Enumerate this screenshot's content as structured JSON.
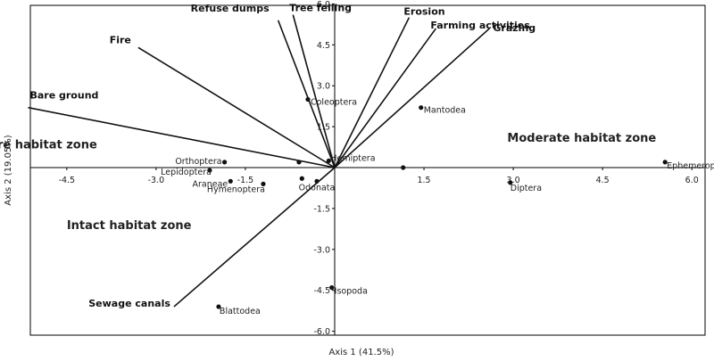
{
  "chart_data": {
    "type": "scatter",
    "subtype": "pca-biplot",
    "title": "",
    "xlabel": "Axis 1 (41.5%)",
    "ylabel": "Axis 2 (19.05%)",
    "xlim": [
      -5.3,
      6.0
    ],
    "ylim": [
      -6.0,
      6.0
    ],
    "x_ticks": [
      {
        "value": -4.5,
        "label": "-4.5"
      },
      {
        "value": -3.0,
        "label": "-3.0"
      },
      {
        "value": -1.5,
        "label": "-1.5"
      },
      {
        "value": 1.5,
        "label": "1.5"
      },
      {
        "value": 3.0,
        "label": "3.0"
      },
      {
        "value": 4.5,
        "label": "4.5"
      },
      {
        "value": 6.0,
        "label": "6.0"
      }
    ],
    "y_ticks": [
      {
        "value": 6.0,
        "label": "6.0"
      },
      {
        "value": 4.5,
        "label": "4.5"
      },
      {
        "value": 3.0,
        "label": "3.0"
      },
      {
        "value": 1.5,
        "label": "1.5"
      },
      {
        "value": -1.5,
        "label": "-1.5"
      },
      {
        "value": -3.0,
        "label": "-3.0"
      },
      {
        "value": -4.5,
        "label": "-4.5"
      },
      {
        "value": -6.0,
        "label": "-6.0"
      }
    ],
    "grid": false,
    "vector_color": "#111111",
    "point_color": "#111111",
    "vectors": [
      {
        "name": "Bare ground",
        "x": -5.15,
        "y": 2.2
      },
      {
        "name": "Fire",
        "x": -3.3,
        "y": 4.4
      },
      {
        "name": "Refuse dumps",
        "x": -0.95,
        "y": 5.4
      },
      {
        "name": "Tree felling",
        "x": -0.7,
        "y": 5.6
      },
      {
        "name": "Erosion",
        "x": 1.25,
        "y": 5.5
      },
      {
        "name": "Farming activities",
        "x": 1.7,
        "y": 5.1
      },
      {
        "name": "Grazing",
        "x": 2.6,
        "y": 5.1
      },
      {
        "name": "Sewage canals",
        "x": -2.7,
        "y": -5.1
      }
    ],
    "points": [
      {
        "name": "Coleoptera",
        "x": -0.45,
        "y": 2.5
      },
      {
        "name": "Mantodea",
        "x": 1.45,
        "y": 2.2
      },
      {
        "name": "Orthoptera",
        "x": -1.85,
        "y": 0.2
      },
      {
        "name": "Lepidoptera",
        "x": -2.1,
        "y": -0.1
      },
      {
        "name": "Araneae",
        "x": -1.75,
        "y": -0.5
      },
      {
        "name": "Hymenoptera",
        "x": -1.2,
        "y": -0.6
      },
      {
        "name": "Odonata",
        "x": -0.3,
        "y": -0.5
      },
      {
        "name": "Hemiptera",
        "x": -0.1,
        "y": 0.25
      },
      {
        "name": "Diptera",
        "x": 2.95,
        "y": -0.55
      },
      {
        "name": "Ephemeroptera",
        "x": 5.55,
        "y": 0.2
      },
      {
        "name": "Isopoda",
        "x": -0.05,
        "y": -4.4
      },
      {
        "name": "Blattodea",
        "x": -1.95,
        "y": -5.1
      }
    ],
    "unlabeled_points": [
      {
        "x": -0.6,
        "y": 0.2
      },
      {
        "x": -0.55,
        "y": -0.4
      },
      {
        "x": 1.15,
        "y": 0.0
      }
    ],
    "annotations": [
      {
        "text": "Severe habitat zone",
        "x": -6.2,
        "y": 0.7
      },
      {
        "text": "Moderate habitat zone",
        "x": 2.9,
        "y": 0.95
      },
      {
        "text": "Intact habitat zone",
        "x": -4.5,
        "y": -2.25
      }
    ]
  }
}
